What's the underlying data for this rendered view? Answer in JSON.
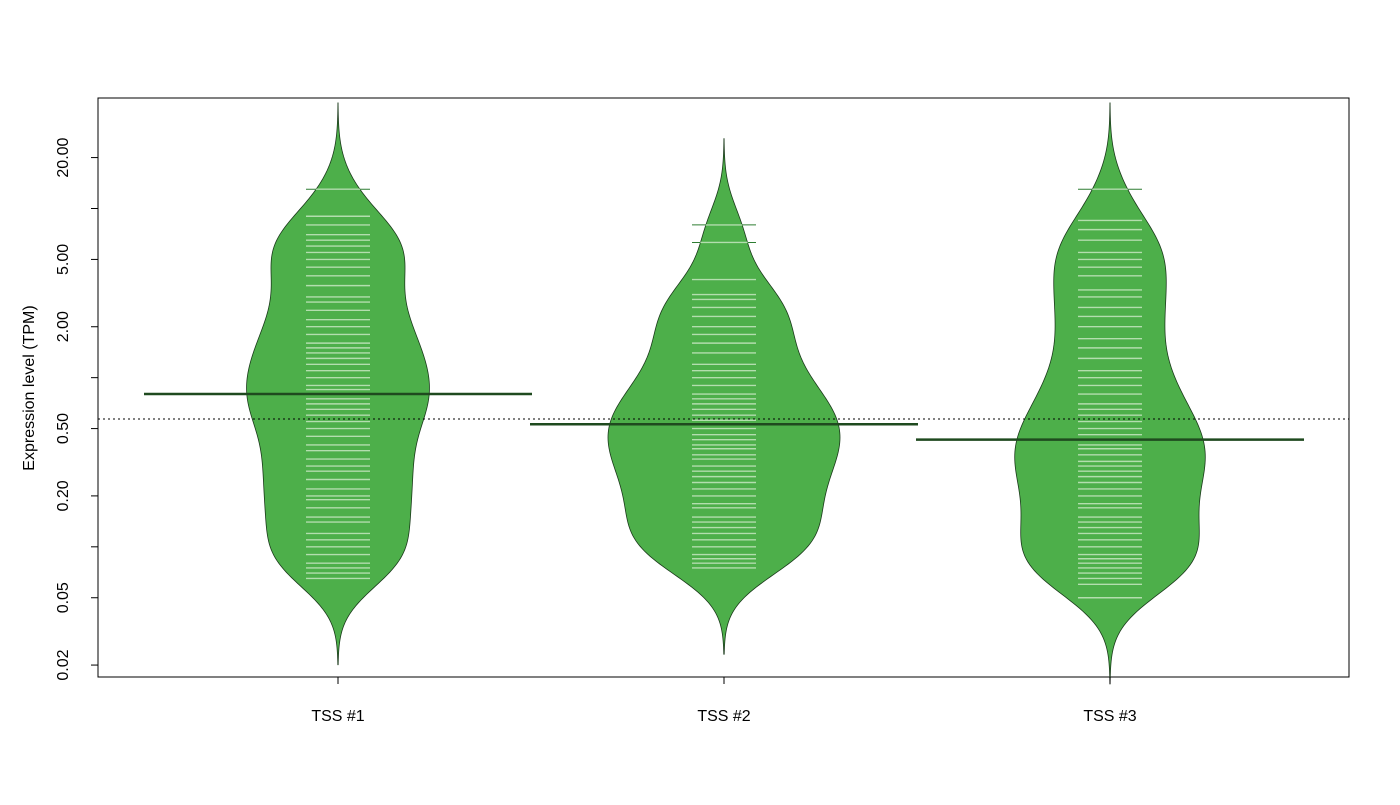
{
  "chart_data": {
    "type": "beanplot",
    "y_label": "Expression level (TPM)",
    "log_scale": true,
    "ylim": [
      0.017,
      45
    ],
    "yticks": [
      0.02,
      0.05,
      {
        "value": 0.2,
        "label": "0.20"
      },
      {
        "value": 0.5,
        "label": "0.50"
      },
      {
        "value": 2,
        "label": "2.00"
      },
      {
        "value": 5,
        "label": "5.00"
      },
      {
        "value": 20,
        "label": "20.00"
      }
    ],
    "yminor_ticks": [
      0.1,
      1,
      10
    ],
    "overall_line": 0.57,
    "color": "#4daf4a",
    "bean_color": "#b3deae",
    "line_color": "#1f4a1f",
    "categories": [
      "TSS #1",
      "TSS #2",
      "TSS #3"
    ],
    "bean_lines": [
      0.8,
      0.53,
      0.43
    ],
    "values": [
      [
        0.065,
        0.07,
        0.075,
        0.08,
        0.09,
        0.1,
        0.11,
        0.12,
        0.14,
        0.15,
        0.17,
        0.19,
        0.2,
        0.22,
        0.25,
        0.28,
        0.3,
        0.33,
        0.37,
        0.4,
        0.45,
        0.5,
        0.55,
        0.6,
        0.65,
        0.7,
        0.75,
        0.8,
        0.85,
        0.9,
        1,
        1.1,
        1.2,
        1.3,
        1.4,
        1.5,
        1.6,
        1.8,
        2,
        2.2,
        2.5,
        2.8,
        3,
        3.5,
        4,
        4.5,
        5,
        5.5,
        6,
        6.5,
        7,
        8,
        9,
        13
      ],
      [
        0.075,
        0.08,
        0.085,
        0.09,
        0.1,
        0.11,
        0.12,
        0.13,
        0.14,
        0.15,
        0.17,
        0.18,
        0.2,
        0.22,
        0.24,
        0.26,
        0.28,
        0.3,
        0.33,
        0.35,
        0.38,
        0.4,
        0.43,
        0.46,
        0.5,
        0.53,
        0.56,
        0.6,
        0.65,
        0.7,
        0.75,
        0.8,
        0.9,
        1,
        1.1,
        1.2,
        1.4,
        1.6,
        1.8,
        2,
        2.3,
        2.6,
        2.9,
        3.1,
        3.8,
        6.3,
        8
      ],
      [
        0.05,
        0.06,
        0.065,
        0.07,
        0.075,
        0.08,
        0.085,
        0.09,
        0.1,
        0.11,
        0.12,
        0.13,
        0.14,
        0.15,
        0.17,
        0.18,
        0.2,
        0.22,
        0.24,
        0.26,
        0.28,
        0.3,
        0.32,
        0.35,
        0.38,
        0.4,
        0.43,
        0.46,
        0.5,
        0.55,
        0.6,
        0.65,
        0.7,
        0.8,
        0.9,
        1,
        1.1,
        1.3,
        1.5,
        1.7,
        2,
        2.3,
        2.6,
        3,
        3.3,
        4,
        4.5,
        5,
        5.5,
        6.5,
        7.5,
        8.5,
        13
      ]
    ]
  }
}
